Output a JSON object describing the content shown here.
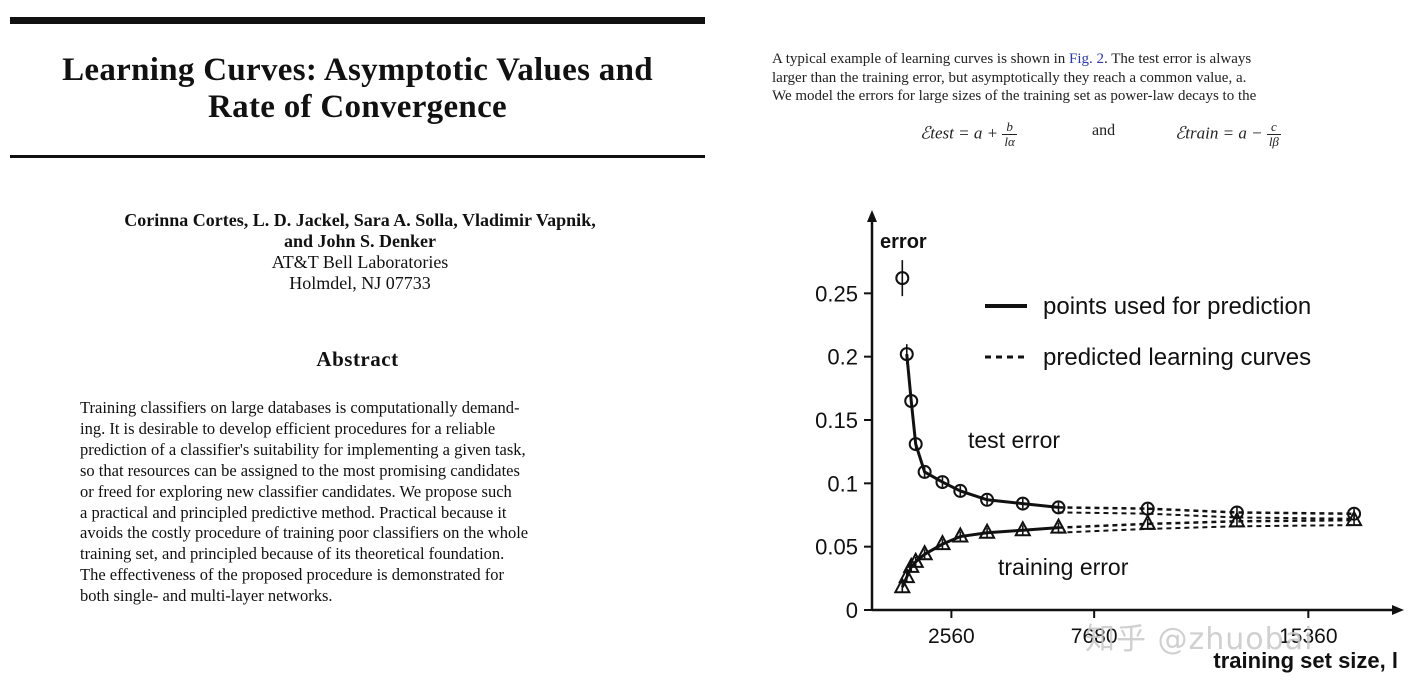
{
  "paper": {
    "title_line1": "Learning Curves: Asymptotic Values and",
    "title_line2": "Rate of Convergence",
    "authors_line1": "Corinna Cortes, L. D. Jackel, Sara A. Solla, Vladimir Vapnik,",
    "authors_line2": "and John S. Denker",
    "affiliation": "AT&T Bell Laboratories",
    "location": "Holmdel, NJ 07733",
    "abstract_heading": "Abstract",
    "abstract_lines": [
      "Training classifiers on large databases is computationally demand-",
      "ing. It is desirable to develop efficient procedures for a reliable",
      "prediction of a classifier's suitability for implementing a given task,",
      "so that resources can be assigned to the most promising candidates",
      "or freed for exploring new classifier candidates. We propose such",
      "a practical and principled predictive method. Practical because it",
      "avoids the costly procedure of training poor classifiers on the whole",
      "training set, and principled because of its theoretical foundation.",
      "The effectiveness of the proposed procedure is demonstrated for",
      "both single- and multi-layer networks."
    ]
  },
  "excerpt": {
    "line1_a": "A typical example of learning curves is shown in ",
    "line1_link": "Fig. 2",
    "line1_b": ". The test error is always",
    "line2": "larger than the training error, but asymptotically they reach a common value, a.",
    "line3": "We model the errors for large sizes of the training set as power-law decays to the",
    "eq_test_lhs": "ℰtest = a +",
    "eq_test_num": "b",
    "eq_test_den": "lα",
    "eq_and": "and",
    "eq_train_lhs": "ℰtrain = a −",
    "eq_train_num": "c",
    "eq_train_den": "lβ"
  },
  "chart_data": {
    "type": "line",
    "ylabel": "error",
    "xlabel": "training set size, l",
    "ylim": [
      0,
      0.3
    ],
    "xlim": [
      0,
      17500
    ],
    "y_ticks": [
      0,
      0.05,
      0.1,
      0.15,
      0.2,
      0.25
    ],
    "y_tick_labels": [
      "0",
      "0.05",
      "0.1",
      "0.15",
      "0.2",
      "0.25"
    ],
    "x_ticks": [
      2560,
      7680,
      15360
    ],
    "x_tick_labels": [
      "2560",
      "7680",
      "15360"
    ],
    "legend_position": "top-right",
    "legend": [
      {
        "label": "points used for prediction",
        "style": "solid"
      },
      {
        "label": "predicted learning curves",
        "style": "dashed"
      }
    ],
    "annotations": [
      {
        "text": "test error"
      },
      {
        "text": "training error"
      }
    ],
    "series": [
      {
        "name": "test error",
        "marker": "circle",
        "x": [
          800,
          960,
          1120,
          1280,
          1600,
          2240,
          2880,
          3840,
          5120,
          6400,
          9600,
          12800,
          17000
        ],
        "y": [
          0.262,
          0.202,
          0.165,
          0.131,
          0.109,
          0.101,
          0.094,
          0.087,
          0.084,
          0.081,
          0.08,
          0.077,
          0.076
        ]
      },
      {
        "name": "training error",
        "marker": "triangle",
        "x": [
          800,
          960,
          1120,
          1280,
          1600,
          2240,
          2880,
          3840,
          5120,
          6400,
          9600,
          12800,
          17000
        ],
        "y": [
          0.018,
          0.026,
          0.034,
          0.038,
          0.044,
          0.052,
          0.058,
          0.061,
          0.063,
          0.065,
          0.068,
          0.07,
          0.071
        ]
      }
    ],
    "fit_x_max": 6400
  },
  "watermark": "知乎 @zhuobai"
}
